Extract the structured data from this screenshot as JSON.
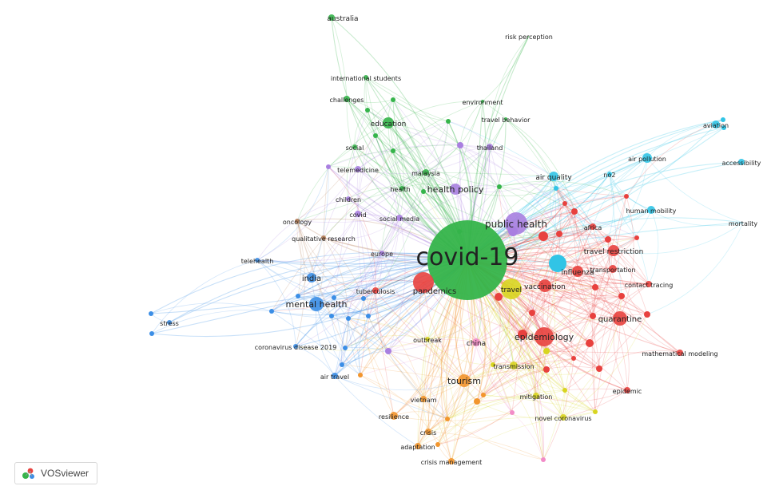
{
  "brand": {
    "label": "VOSviewer",
    "icon": "vosviewer-logo-icon"
  },
  "colors": {
    "red": "#e8413e",
    "green": "#35b44a",
    "blue": "#3b8ee6",
    "yellow": "#d8d520",
    "purple": "#a97fe0",
    "cyan": "#31c4e6",
    "orange": "#f2952d",
    "brown": "#b27a52",
    "pink": "#f28cc8"
  },
  "network": {
    "keywords": [
      {
        "id": "covid",
        "label": "covid-19",
        "cluster": "green"
      },
      {
        "id": "australia",
        "label": "australia",
        "cluster": "green"
      },
      {
        "id": "risk",
        "label": "risk perception",
        "cluster": "green"
      },
      {
        "id": "intl",
        "label": "international students",
        "cluster": "green"
      },
      {
        "id": "challenges",
        "label": "challenges",
        "cluster": "green"
      },
      {
        "id": "environment",
        "label": "environment",
        "cluster": "green"
      },
      {
        "id": "education",
        "label": "education",
        "cluster": "green"
      },
      {
        "id": "travelbeh",
        "label": "travel behavior",
        "cluster": "green"
      },
      {
        "id": "thailand",
        "label": "thailand",
        "cluster": "purple"
      },
      {
        "id": "social",
        "label": "social",
        "cluster": "green"
      },
      {
        "id": "telemedicine",
        "label": "telemedicine",
        "cluster": "purple"
      },
      {
        "id": "malaysia",
        "label": "malaysia",
        "cluster": "green"
      },
      {
        "id": "health",
        "label": "health",
        "cluster": "green"
      },
      {
        "id": "healthpolicy",
        "label": "health policy",
        "cluster": "purple"
      },
      {
        "id": "airquality",
        "label": "air quality",
        "cluster": "cyan"
      },
      {
        "id": "no2",
        "label": "no2",
        "cluster": "cyan"
      },
      {
        "id": "airpollution",
        "label": "air pollution",
        "cluster": "cyan"
      },
      {
        "id": "aviation",
        "label": "aviation",
        "cluster": "cyan"
      },
      {
        "id": "accessibility",
        "label": "accessibility",
        "cluster": "cyan"
      },
      {
        "id": "children",
        "label": "children",
        "cluster": "purple"
      },
      {
        "id": "covid2",
        "label": "covid",
        "cluster": "purple"
      },
      {
        "id": "socialmedia",
        "label": "social media",
        "cluster": "purple"
      },
      {
        "id": "publichealth",
        "label": "public health",
        "cluster": "purple"
      },
      {
        "id": "humanmobility",
        "label": "human mobility",
        "cluster": "cyan"
      },
      {
        "id": "mortality",
        "label": "mortality",
        "cluster": "cyan"
      },
      {
        "id": "oncology",
        "label": "oncology",
        "cluster": "brown"
      },
      {
        "id": "qualitative",
        "label": "qualitative research",
        "cluster": "brown"
      },
      {
        "id": "africa",
        "label": "africa",
        "cluster": "red"
      },
      {
        "id": "europe",
        "label": "europe",
        "cluster": "purple"
      },
      {
        "id": "travelrestriction",
        "label": "travel restriction",
        "cluster": "red"
      },
      {
        "id": "telehealth",
        "label": "telehealth",
        "cluster": "blue"
      },
      {
        "id": "transportation",
        "label": "transportation",
        "cluster": "red"
      },
      {
        "id": "influenza",
        "label": "influenza",
        "cluster": "red"
      },
      {
        "id": "india",
        "label": "india",
        "cluster": "blue"
      },
      {
        "id": "tuberculosis",
        "label": "tuberculosis",
        "cluster": "red"
      },
      {
        "id": "contacttracing",
        "label": "contact tracing",
        "cluster": "red"
      },
      {
        "id": "vaccination",
        "label": "vaccination",
        "cluster": "red"
      },
      {
        "id": "mentalhealth",
        "label": "mental health",
        "cluster": "blue"
      },
      {
        "id": "pandemics",
        "label": "pandemics",
        "cluster": "red"
      },
      {
        "id": "travel",
        "label": "travel",
        "cluster": "yellow"
      },
      {
        "id": "quarantine",
        "label": "quarantine",
        "cluster": "red"
      },
      {
        "id": "stress",
        "label": "stress",
        "cluster": "blue"
      },
      {
        "id": "outbreak",
        "label": "outbreak",
        "cluster": "yellow"
      },
      {
        "id": "china",
        "label": "china",
        "cluster": "pink"
      },
      {
        "id": "epidemiology",
        "label": "epidemiology",
        "cluster": "red"
      },
      {
        "id": "coronavirus2019",
        "label": "coronavirus disease 2019",
        "cluster": "blue"
      },
      {
        "id": "mathmodel",
        "label": "mathematical modeling",
        "cluster": "red"
      },
      {
        "id": "airtravel",
        "label": "air travel",
        "cluster": "blue"
      },
      {
        "id": "transmission",
        "label": "transmission",
        "cluster": "yellow"
      },
      {
        "id": "tourism",
        "label": "tourism",
        "cluster": "orange"
      },
      {
        "id": "epidemic",
        "label": "epidemic",
        "cluster": "red"
      },
      {
        "id": "vietnam",
        "label": "vietnam",
        "cluster": "orange"
      },
      {
        "id": "mitigation",
        "label": "mitigation",
        "cluster": "yellow"
      },
      {
        "id": "resilience",
        "label": "resilience",
        "cluster": "orange"
      },
      {
        "id": "novelcorona",
        "label": "novel coronavirus",
        "cluster": "yellow"
      },
      {
        "id": "crisis",
        "label": "crisis",
        "cluster": "orange"
      },
      {
        "id": "adaptation",
        "label": "adaptation",
        "cluster": "orange"
      },
      {
        "id": "crisismgmt",
        "label": "crisis management",
        "cluster": "orange"
      }
    ]
  }
}
